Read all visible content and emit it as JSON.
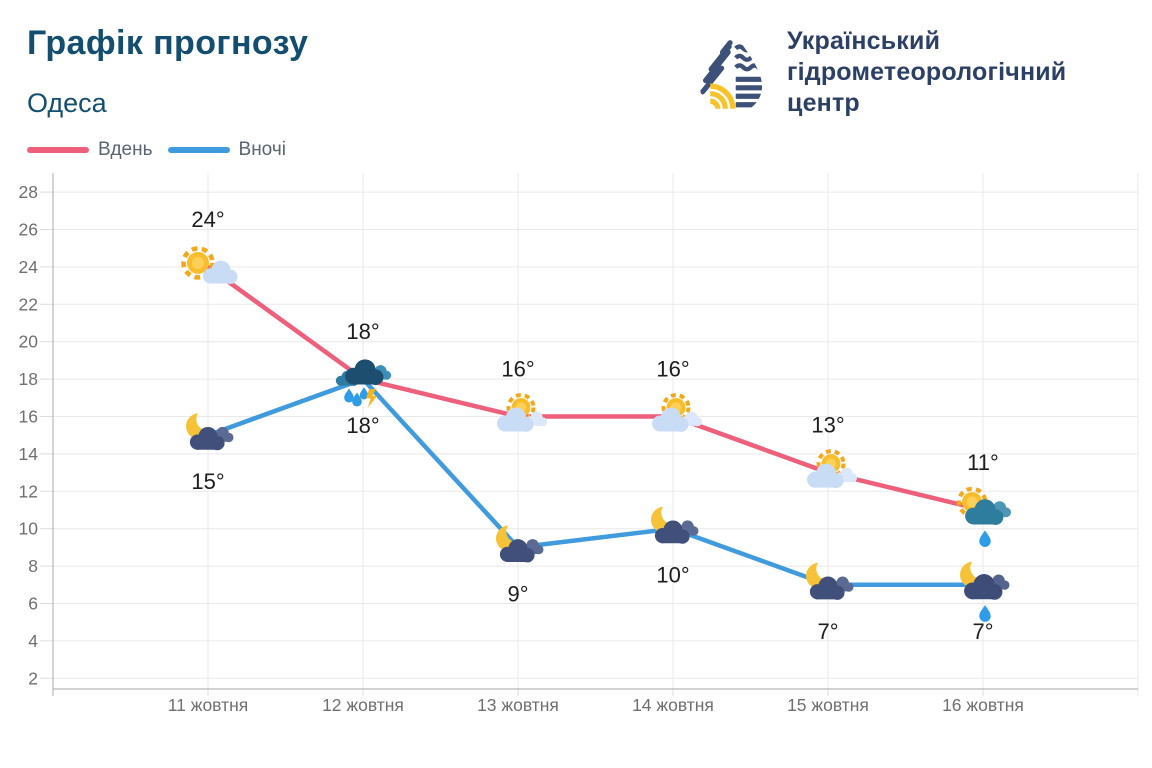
{
  "header": {
    "title": "Графік прогнозу",
    "city": "Одеса",
    "logo": {
      "line1": "Український",
      "line2": "гідрометеорологічний",
      "line3": "центр"
    }
  },
  "legend": {
    "day": {
      "label": "Вдень",
      "color": "#ee5f7b"
    },
    "night": {
      "label": "Вночі",
      "color": "#3f9bdd"
    }
  },
  "chart_data": {
    "type": "line",
    "title": "Графік прогнозу",
    "subtitle": "Одеса",
    "categories": [
      "11 жовтня",
      "12 жовтня",
      "13 жовтня",
      "14 жовтня",
      "15 жовтня",
      "16 жовтня"
    ],
    "series": [
      {
        "name": "Вдень",
        "color": "#ee5f7b",
        "values": [
          24,
          18,
          16,
          16,
          13,
          11
        ],
        "labels": [
          "24°",
          "18°",
          "16°",
          "16°",
          "13°",
          "11°"
        ],
        "icons": [
          "sun-cloud",
          "storm-rain-lightning",
          "sun-behind-cloud",
          "sun-behind-cloud",
          "sun-behind-cloud",
          "sun-cloud-rain"
        ]
      },
      {
        "name": "Вночі",
        "color": "#3f9bdd",
        "values": [
          15,
          18,
          9,
          10,
          7,
          7
        ],
        "labels": [
          "15°",
          "18°",
          "9°",
          "10°",
          "7°",
          "7°"
        ],
        "icons": [
          "moon-cloud",
          "storm-rain-lightning",
          "moon-cloud",
          "moon-cloud",
          "moon-cloud",
          "moon-cloud-rain"
        ]
      }
    ],
    "ylim": [
      2,
      28
    ],
    "yticks": [
      2,
      4,
      6,
      8,
      10,
      12,
      14,
      16,
      18,
      20,
      22,
      24,
      26,
      28
    ],
    "xlabel": "",
    "ylabel": "",
    "grid": true,
    "legend_position": "top-left"
  },
  "colors": {
    "background": "#ffffff",
    "title": "#134e70",
    "logo_text": "#2c4066",
    "logo_navy": "#3c5078",
    "logo_yellow": "#f8c22b",
    "grid": "#e9e9e9",
    "tick": "#dcdcdc",
    "axis": "#b7b7b7",
    "axis_label": "#6f6f6f",
    "date_label": "#6f6f6f",
    "temp_label": "#1d1d1d",
    "legend_label": "#5a6472",
    "day_line": "#ee5f7b",
    "night_line": "#3f9bdd"
  }
}
